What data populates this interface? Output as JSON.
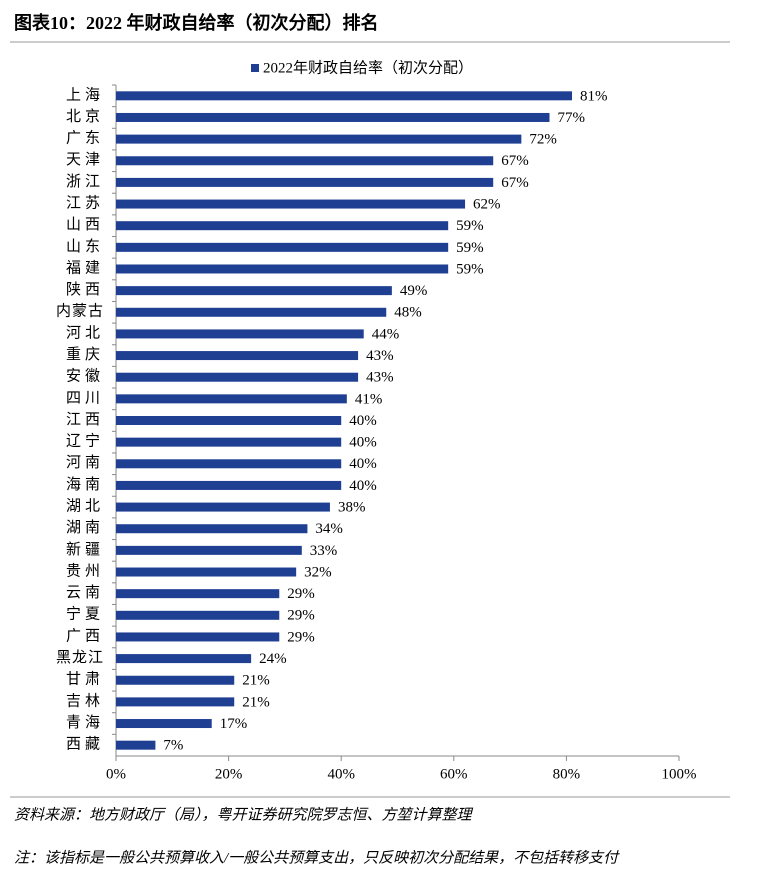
{
  "chart_data": {
    "type": "bar",
    "orientation": "horizontal",
    "title": "图表10：2022 年财政自给率（初次分配）排名",
    "categories": [
      "上海",
      "北京",
      "广东",
      "天津",
      "浙江",
      "江苏",
      "山西",
      "山东",
      "福建",
      "陕西",
      "内蒙古",
      "河北",
      "重庆",
      "安徽",
      "四川",
      "江西",
      "辽宁",
      "河南",
      "海南",
      "湖北",
      "湖南",
      "新疆",
      "贵州",
      "云南",
      "宁夏",
      "广西",
      "黑龙江",
      "甘肃",
      "吉林",
      "青海",
      "西藏"
    ],
    "series": [
      {
        "name": "2022年财政自给率（初次分配）",
        "color": "#1f3f93",
        "values": [
          81,
          77,
          72,
          67,
          67,
          62,
          59,
          59,
          59,
          49,
          48,
          44,
          43,
          43,
          41,
          40,
          40,
          40,
          40,
          38,
          34,
          33,
          32,
          29,
          29,
          29,
          24,
          21,
          21,
          17,
          7
        ],
        "value_labels": [
          "81%",
          "77%",
          "72%",
          "67%",
          "67%",
          "62%",
          "59%",
          "59%",
          "59%",
          "49%",
          "48%",
          "44%",
          "43%",
          "43%",
          "41%",
          "40%",
          "40%",
          "40%",
          "40%",
          "38%",
          "34%",
          "33%",
          "32%",
          "29%",
          "29%",
          "29%",
          "24%",
          "21%",
          "21%",
          "17%",
          "7%"
        ]
      }
    ],
    "xlim": [
      0,
      100
    ],
    "xticks": [
      {
        "value": 0,
        "label": "0%"
      },
      {
        "value": 20,
        "label": "20%"
      },
      {
        "value": 40,
        "label": "40%"
      },
      {
        "value": 60,
        "label": "60%"
      },
      {
        "value": 80,
        "label": "80%"
      },
      {
        "value": 100,
        "label": "100%"
      }
    ],
    "legend": "top",
    "source": "资料来源：地方财政厅（局），粤开证券研究院罗志恒、方堃计算整理",
    "note": "注：该指标是一般公共预算收入/一般公共预算支出，只反映初次分配结果，不包括转移支付"
  }
}
